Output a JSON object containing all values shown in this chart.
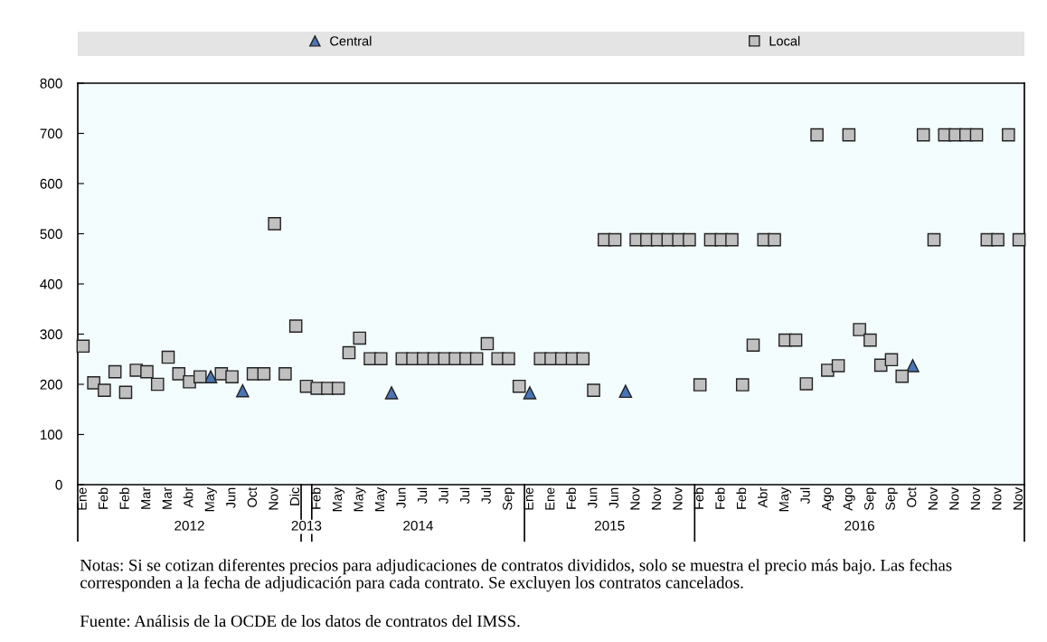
{
  "chart_data": {
    "type": "scatter",
    "categories": [
      "Ene",
      null,
      "Feb",
      null,
      "Feb",
      null,
      "Mar",
      null,
      "Mar",
      null,
      "Abr",
      null,
      "May",
      null,
      "Jun",
      null,
      "Oct",
      null,
      "Nov",
      null,
      "Dic",
      null,
      "Feb",
      null,
      "May",
      null,
      "May",
      null,
      "May",
      null,
      "Jun",
      null,
      "Jul",
      null,
      "Jul",
      null,
      "Jul",
      null,
      "Jul",
      null,
      "Sep",
      null,
      "Ene",
      null,
      "Ene",
      null,
      "Feb",
      null,
      "Jun",
      null,
      "Jun",
      null,
      "Nov",
      null,
      "Nov",
      null,
      "Nov",
      null,
      "Feb",
      null,
      "Feb",
      null,
      "Feb",
      null,
      "Abr",
      null,
      "May",
      null,
      "Jul",
      null,
      "Ago",
      null,
      "Ago",
      null,
      "Sep",
      null,
      "Sep",
      null,
      "Oct",
      null,
      "Nov",
      null,
      "Nov",
      null,
      "Nov",
      null,
      "Nov",
      null,
      "Nov"
    ],
    "series": [
      {
        "name": "Central",
        "color": "#4a74b4",
        "marker": "triangle",
        "values": [
          null,
          null,
          null,
          null,
          null,
          null,
          null,
          null,
          null,
          null,
          null,
          null,
          215,
          null,
          null,
          187,
          null,
          null,
          null,
          null,
          null,
          null,
          null,
          null,
          null,
          null,
          null,
          null,
          null,
          183,
          null,
          null,
          null,
          null,
          null,
          null,
          null,
          null,
          null,
          null,
          null,
          null,
          183,
          null,
          null,
          null,
          null,
          null,
          null,
          null,
          null,
          186,
          null,
          null,
          null,
          null,
          null,
          null,
          null,
          null,
          null,
          null,
          null,
          null,
          null,
          null,
          null,
          null,
          null,
          null,
          null,
          null,
          null,
          null,
          null,
          null,
          null,
          null,
          237,
          null,
          null,
          null,
          null,
          null,
          null,
          null,
          null,
          null,
          null
        ]
      },
      {
        "name": "Local",
        "color": "#c0c0c0",
        "marker": "square",
        "values": [
          276,
          203,
          188,
          225,
          184,
          228,
          225,
          200,
          254,
          221,
          205,
          215,
          null,
          221,
          215,
          null,
          221,
          221,
          520,
          221,
          316,
          196,
          192,
          192,
          192,
          263,
          292,
          251,
          251,
          null,
          251,
          251,
          251,
          251,
          251,
          251,
          251,
          251,
          281,
          251,
          251,
          196,
          null,
          251,
          251,
          251,
          251,
          251,
          188,
          488,
          488,
          null,
          488,
          488,
          488,
          488,
          488,
          488,
          199,
          488,
          488,
          488,
          199,
          278,
          488,
          488,
          288,
          288,
          201,
          697,
          228,
          237,
          697,
          309,
          288,
          238,
          249,
          216,
          null,
          697,
          488,
          697,
          697,
          697,
          697,
          488,
          488,
          697,
          488
        ]
      }
    ],
    "ylim": [
      0,
      800
    ],
    "yticks": [
      0,
      100,
      200,
      300,
      400,
      500,
      600,
      700,
      800
    ],
    "legend": "top",
    "annotations": [
      "2012",
      "2013",
      "2014",
      "2015",
      "2016",
      "Notas: Si se cotizan diferentes precios para adjudicaciones de contratos divididos, solo se muestra el precio más bajo. Las fechas corresponden a la fecha de adjudicación para cada contrato. Se excluyen los contratos cancelados.",
      "Fuente: Análisis de la OCDE de los datos de contratos del IMSS."
    ]
  }
}
